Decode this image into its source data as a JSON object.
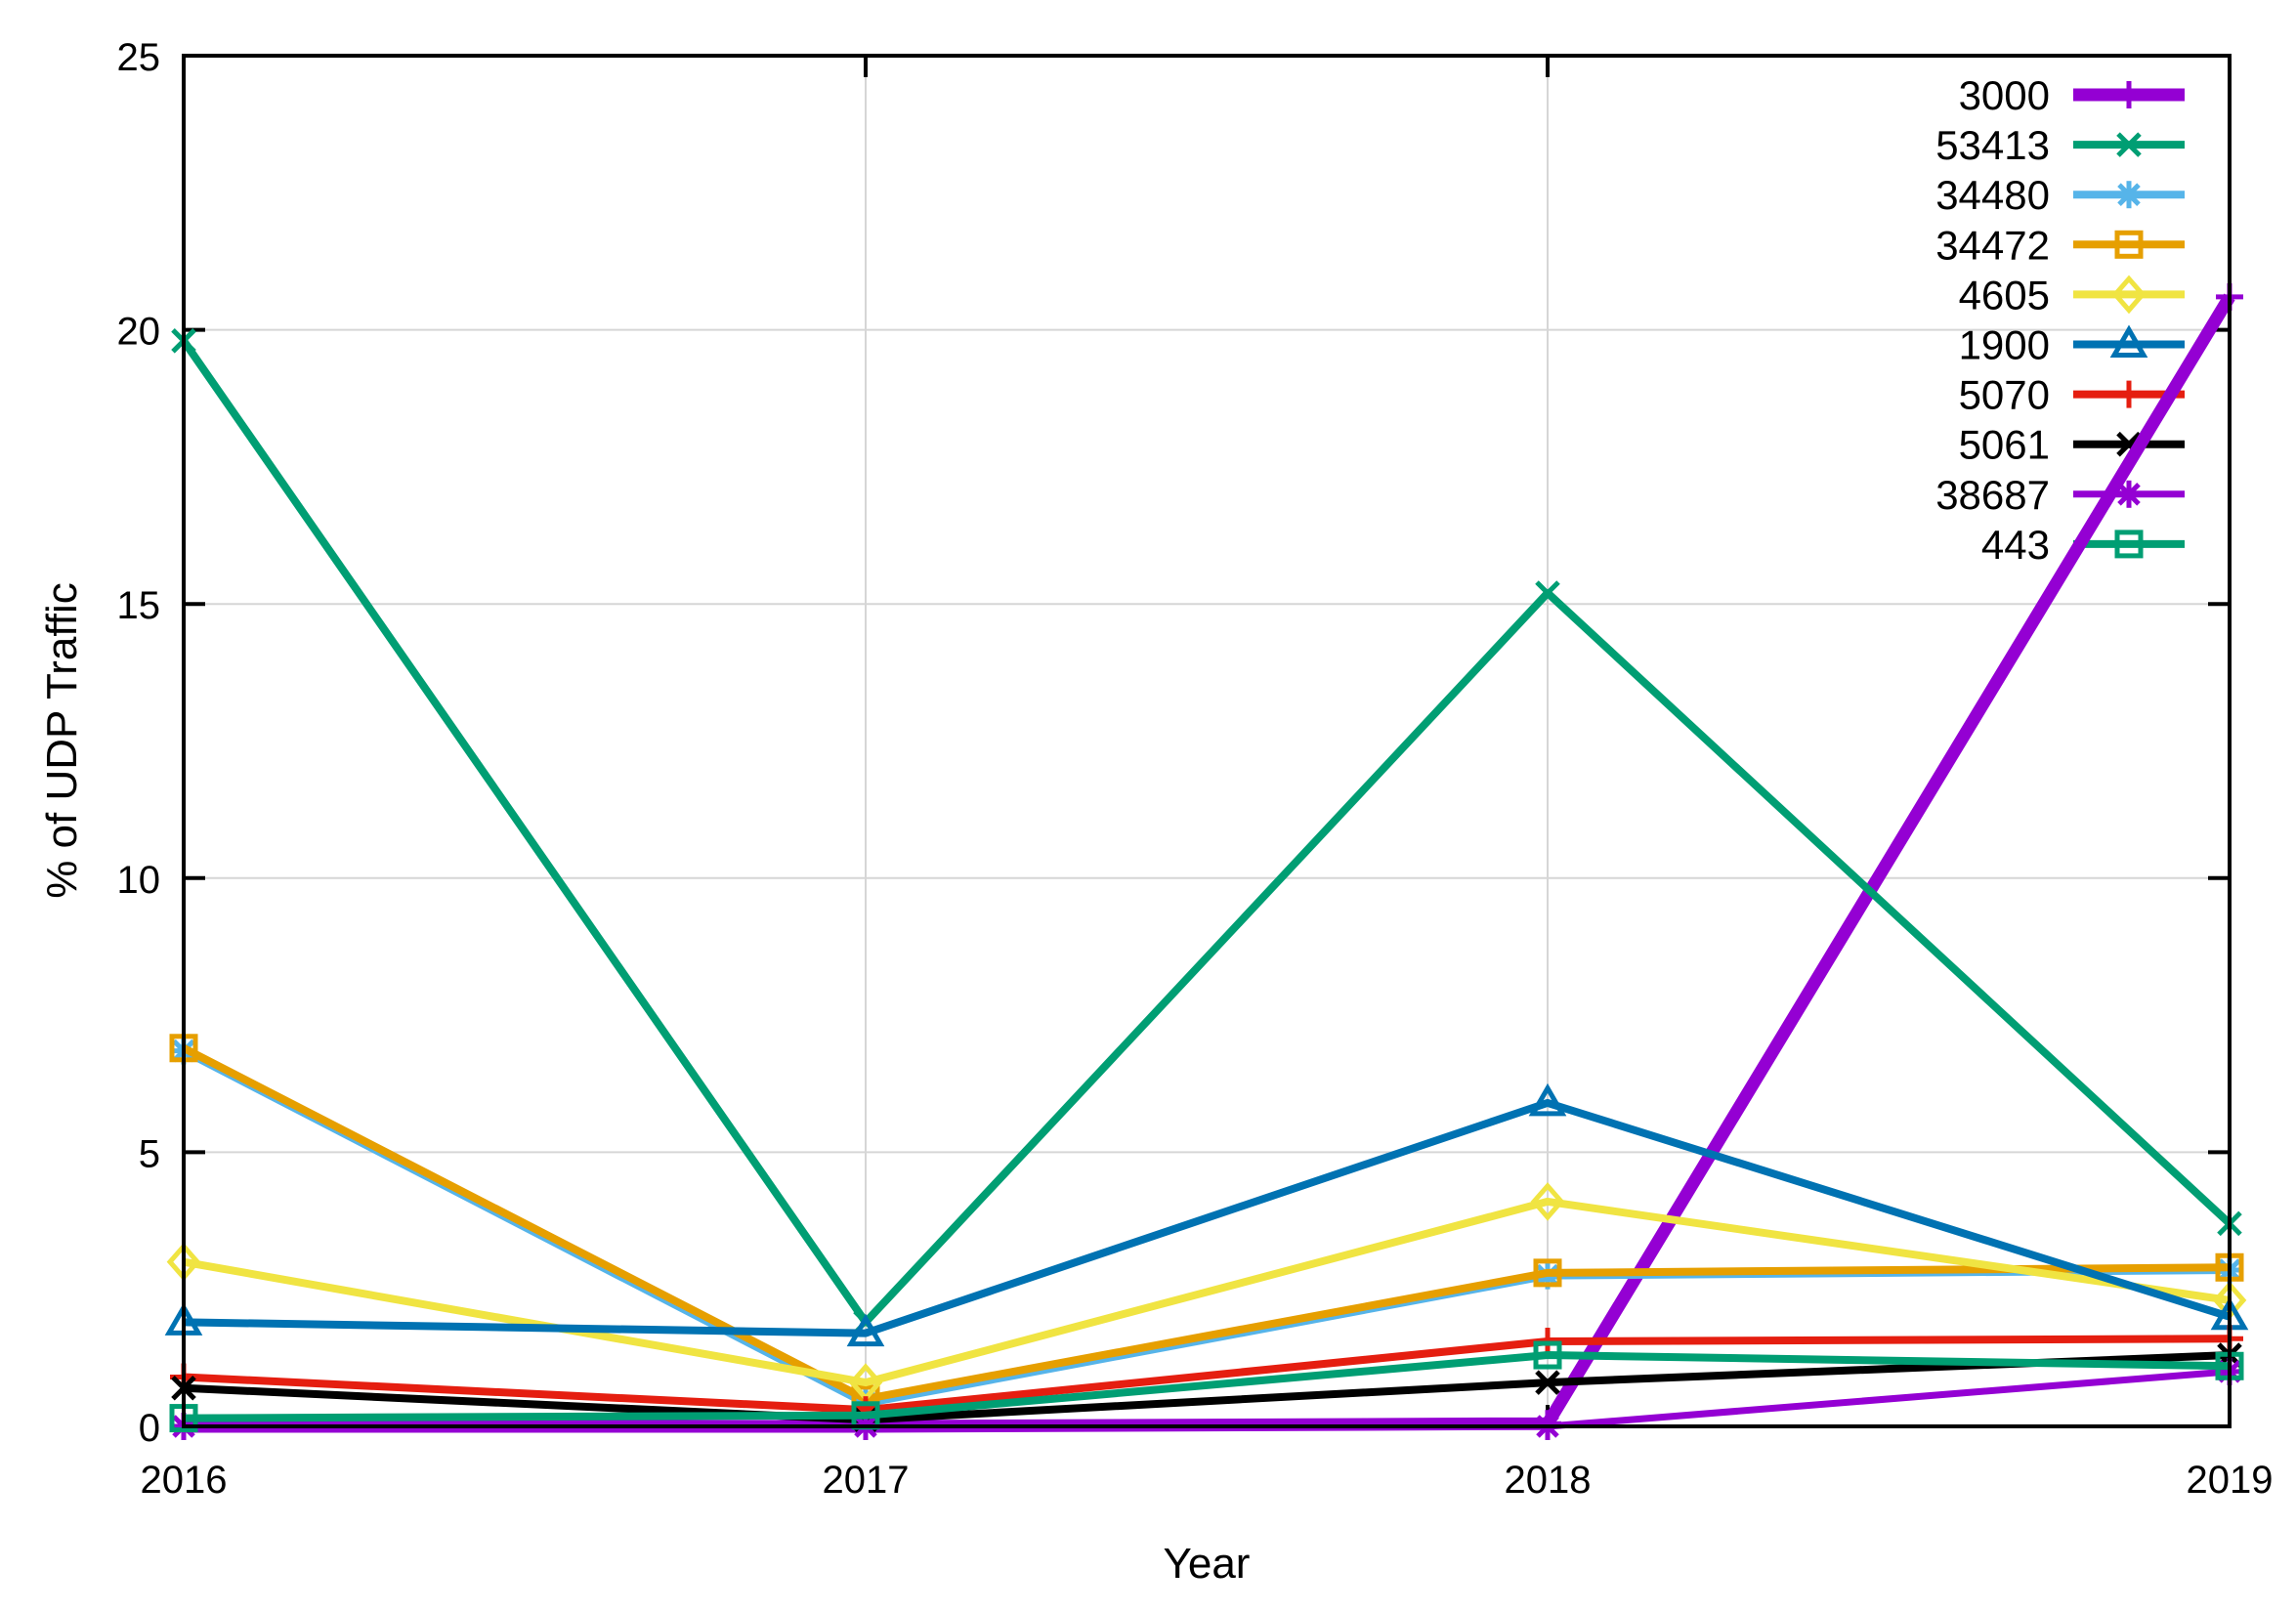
{
  "chart_data": {
    "type": "line",
    "title": "",
    "xlabel": "Year",
    "ylabel": "% of UDP Traffic",
    "x": [
      2016,
      2017,
      2018,
      2019
    ],
    "xlim": [
      2016,
      2019
    ],
    "ylim": [
      0,
      25
    ],
    "xticks": [
      2016,
      2017,
      2018,
      2019
    ],
    "xtick_labels": [
      "2016",
      "2017",
      "2018",
      "2019"
    ],
    "yticks": [
      0,
      5,
      10,
      15,
      20,
      25
    ],
    "ytick_labels": [
      "0",
      "5",
      "10",
      "15",
      "20",
      "25"
    ],
    "grid": true,
    "grid_color": "#d6d6d6",
    "axis_color": "#000000",
    "background_color": "#ffffff",
    "legend_position": "top-right",
    "series": [
      {
        "name": "3000",
        "color": "#9400d3",
        "marker": "plus",
        "line_width": 13,
        "values": [
          0.0,
          0.0,
          0.05,
          20.6
        ]
      },
      {
        "name": "53413",
        "color": "#009e73",
        "marker": "cross",
        "line_width": 8,
        "values": [
          19.8,
          1.9,
          15.2,
          3.7
        ]
      },
      {
        "name": "34480",
        "color": "#56b4e9",
        "marker": "asterisk",
        "line_width": 8,
        "values": [
          6.85,
          0.42,
          2.75,
          2.85
        ]
      },
      {
        "name": "34472",
        "color": "#e69f00",
        "marker": "square",
        "line_width": 8,
        "values": [
          6.9,
          0.5,
          2.8,
          2.9
        ]
      },
      {
        "name": "4605",
        "color": "#f0e442",
        "marker": "diamond",
        "line_width": 8,
        "values": [
          3.0,
          0.8,
          4.1,
          2.3
        ]
      },
      {
        "name": "1900",
        "color": "#0072b2",
        "marker": "triangle",
        "line_width": 8,
        "values": [
          1.9,
          1.7,
          5.9,
          2.0
        ]
      },
      {
        "name": "5070",
        "color": "#e51e10",
        "marker": "plus",
        "line_width": 8,
        "values": [
          0.9,
          0.3,
          1.55,
          1.6
        ]
      },
      {
        "name": "5061",
        "color": "#000000",
        "marker": "cross",
        "line_width": 8,
        "values": [
          0.7,
          0.12,
          0.8,
          1.3
        ]
      },
      {
        "name": "38687",
        "color": "#9400d3",
        "marker": "asterisk",
        "line_width": 7,
        "values": [
          0.0,
          0.0,
          0.0,
          1.0
        ]
      },
      {
        "name": "443",
        "color": "#009e73",
        "marker": "square",
        "line_width": 8,
        "values": [
          0.15,
          0.2,
          1.3,
          1.1
        ]
      }
    ]
  }
}
